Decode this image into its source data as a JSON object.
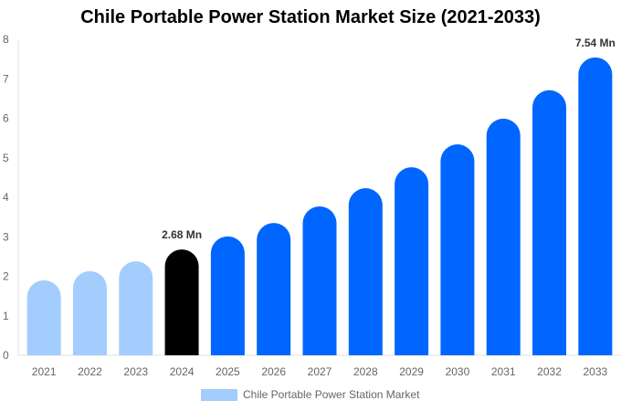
{
  "chart_data": {
    "type": "bar",
    "title": "Chile Portable Power Station Market Size (2021-2033)",
    "categories": [
      "2021",
      "2022",
      "2023",
      "2024",
      "2025",
      "2026",
      "2027",
      "2028",
      "2029",
      "2030",
      "2031",
      "2032",
      "2033"
    ],
    "series": [
      {
        "name": "Chile Portable Power Station Market",
        "values": [
          1.9,
          2.13,
          2.38,
          2.68,
          3.01,
          3.35,
          3.77,
          4.23,
          4.76,
          5.34,
          5.99,
          6.71,
          7.54
        ]
      }
    ],
    "data_labels": {
      "3": "2.68 Mn",
      "12": "7.54 Mn"
    },
    "bar_colors": {
      "historic": "#a3cdfd",
      "base_year": "#000000",
      "forecast": "#0066ff"
    },
    "ylim": [
      0,
      8
    ],
    "yticks": [
      0,
      1,
      2,
      3,
      4,
      5,
      6,
      7,
      8
    ],
    "xlabel": "",
    "ylabel": "",
    "grid": false,
    "legend": "bottom"
  }
}
